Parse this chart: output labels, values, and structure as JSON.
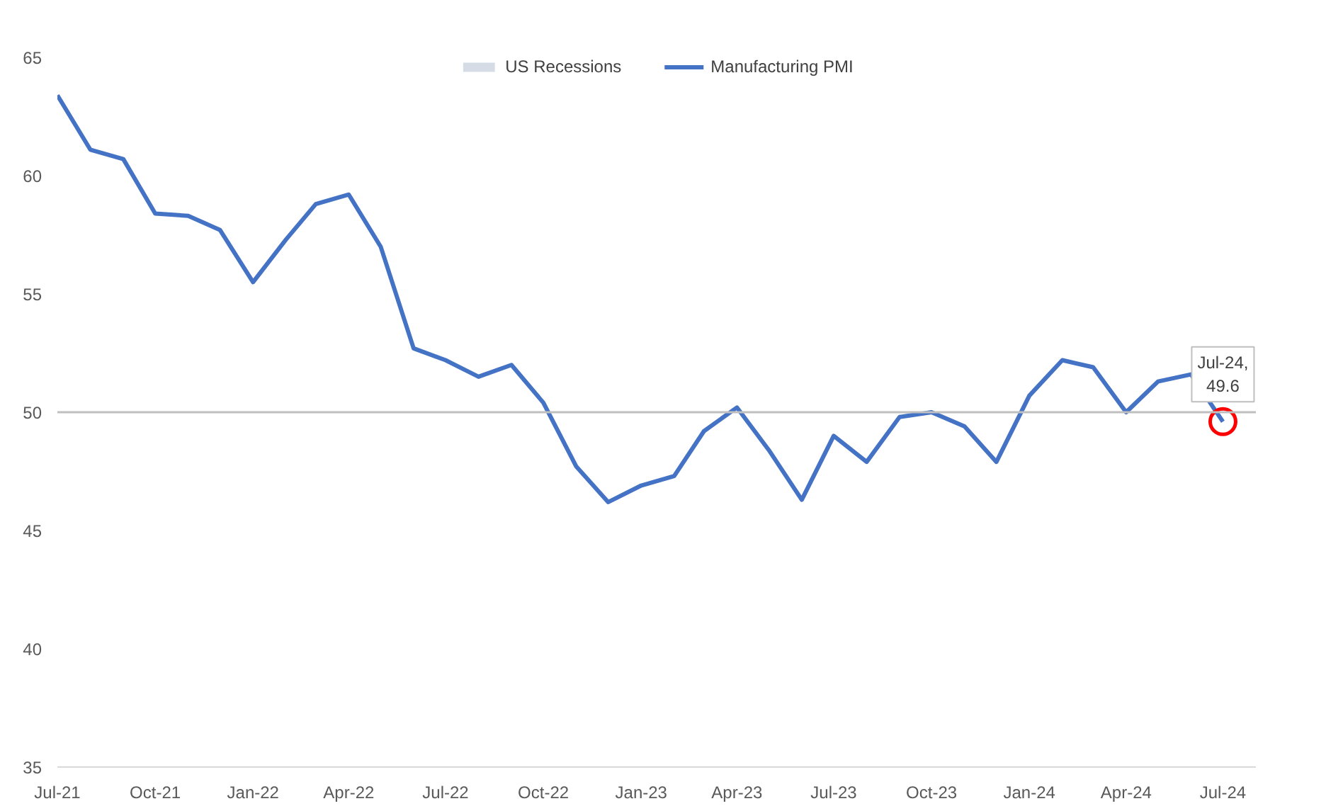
{
  "chart_data": {
    "type": "line",
    "x": [
      "2021-07",
      "2021-08",
      "2021-09",
      "2021-10",
      "2021-11",
      "2021-12",
      "2022-01",
      "2022-02",
      "2022-03",
      "2022-04",
      "2022-05",
      "2022-06",
      "2022-07",
      "2022-08",
      "2022-09",
      "2022-10",
      "2022-11",
      "2022-12",
      "2023-01",
      "2023-02",
      "2023-03",
      "2023-04",
      "2023-05",
      "2023-06",
      "2023-07",
      "2023-08",
      "2023-09",
      "2023-10",
      "2023-11",
      "2023-12",
      "2024-01",
      "2024-02",
      "2024-03",
      "2024-04",
      "2024-05",
      "2024-06",
      "2024-07"
    ],
    "series": [
      {
        "name": "US Recessions",
        "type": "area",
        "color": "#d6dce5",
        "values": [
          null,
          null,
          null,
          null,
          null,
          null,
          null,
          null,
          null,
          null,
          null,
          null,
          null,
          null,
          null,
          null,
          null,
          null,
          null,
          null,
          null,
          null,
          null,
          null,
          null,
          null,
          null,
          null,
          null,
          null,
          null,
          null,
          null,
          null,
          null,
          null,
          null
        ]
      },
      {
        "name": "Manufacturing PMI",
        "color": "#4472c4",
        "values": [
          63.4,
          61.1,
          60.7,
          58.4,
          58.3,
          57.7,
          55.5,
          57.3,
          58.8,
          59.2,
          57.0,
          52.7,
          52.2,
          51.5,
          52.0,
          50.4,
          47.7,
          46.2,
          46.9,
          47.3,
          49.2,
          50.2,
          48.4,
          46.3,
          49.0,
          47.9,
          49.8,
          50.0,
          49.4,
          47.9,
          50.7,
          52.2,
          51.9,
          50.0,
          51.3,
          51.6,
          49.6
        ]
      }
    ],
    "xlim": [
      "2021-07",
      "2024-08"
    ],
    "xticks": [
      {
        "value": "2021-07",
        "label": "Jul-21"
      },
      {
        "value": "2021-10",
        "label": "Oct-21"
      },
      {
        "value": "2022-01",
        "label": "Jan-22"
      },
      {
        "value": "2022-04",
        "label": "Apr-22"
      },
      {
        "value": "2022-07",
        "label": "Jul-22"
      },
      {
        "value": "2022-10",
        "label": "Oct-22"
      },
      {
        "value": "2023-01",
        "label": "Jan-23"
      },
      {
        "value": "2023-04",
        "label": "Apr-23"
      },
      {
        "value": "2023-07",
        "label": "Jul-23"
      },
      {
        "value": "2023-10",
        "label": "Oct-23"
      },
      {
        "value": "2024-01",
        "label": "Jan-24"
      },
      {
        "value": "2024-04",
        "label": "Apr-24"
      },
      {
        "value": "2024-07",
        "label": "Jul-24"
      }
    ],
    "ylim": [
      35,
      65
    ],
    "yticks": [
      35,
      40,
      45,
      50,
      55,
      60,
      65
    ],
    "ref_lines": [
      {
        "axis": "y",
        "value": 50,
        "color": "#bfbfbf"
      }
    ],
    "annotations": [
      {
        "text": "Jul-24, 49.6",
        "x": "2024-07",
        "y": 49.6
      }
    ],
    "grid": false,
    "legend": "top",
    "marker": "none",
    "line_style": "solid"
  }
}
